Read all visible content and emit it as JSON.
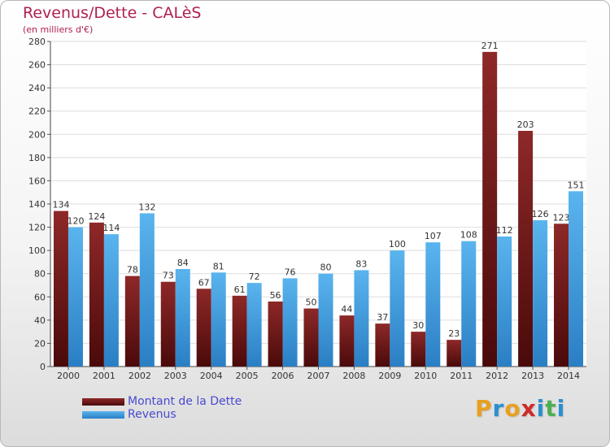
{
  "header": {
    "title": "Revenus/Dette - CALèS",
    "subtitle": "(en milliers d'€)"
  },
  "chart_data": {
    "type": "bar",
    "categories": [
      "2000",
      "2001",
      "2002",
      "2003",
      "2004",
      "2005",
      "2006",
      "2007",
      "2008",
      "2009",
      "2010",
      "2011",
      "2012",
      "2013",
      "2014"
    ],
    "series": [
      {
        "name": "Montant de la Dette",
        "color": "#7b1c1c",
        "values": [
          134,
          124,
          78,
          73,
          67,
          61,
          56,
          50,
          44,
          37,
          30,
          23,
          271,
          203,
          123
        ]
      },
      {
        "name": "Revenus",
        "color": "#4aa3e0",
        "values": [
          120,
          114,
          132,
          84,
          81,
          72,
          76,
          80,
          83,
          100,
          107,
          108,
          112,
          126,
          151
        ]
      }
    ],
    "ylim": [
      0,
      280
    ],
    "yticks": [
      0,
      20,
      40,
      60,
      80,
      100,
      120,
      140,
      160,
      180,
      200,
      220,
      240,
      260,
      280
    ],
    "grid": true,
    "legend_position": "bottom-left"
  },
  "legend": {
    "debt_label": "Montant de la Dette",
    "revenue_label": "Revenus"
  },
  "logo": {
    "letters": [
      "P",
      "r",
      "o",
      "x",
      "i",
      "t",
      "i"
    ],
    "colors": [
      "#e8a020",
      "#2a8fd0",
      "#e8a020",
      "#d02a2a",
      "#2a8fd0",
      "#4caf50",
      "#2a8fd0"
    ]
  }
}
